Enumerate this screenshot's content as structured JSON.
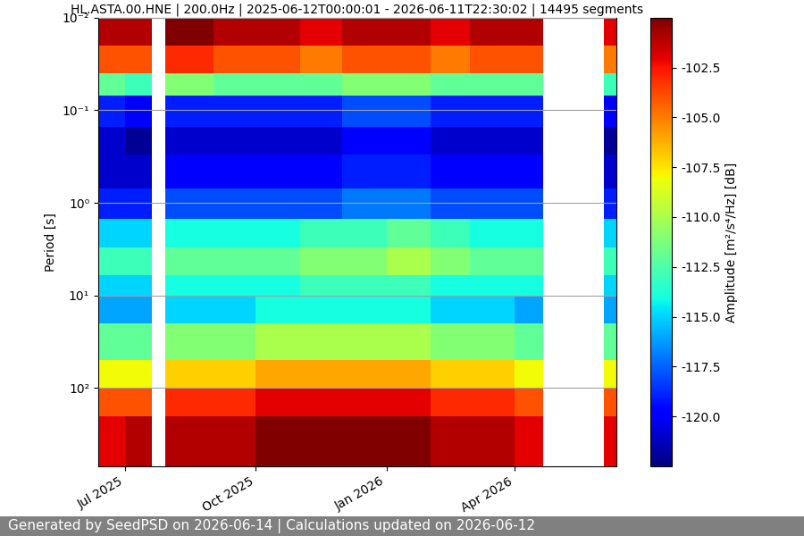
{
  "chart_data": {
    "type": "heatmap",
    "title": "HL.ASTA.00.HNE | 200.0Hz | 2025-06-12T00:00:01 - 2026-06-11T22:30:02 | 14495 segments",
    "ylabel": "Period [s]",
    "footer": "Generated by SeedPSD on 2026-06-14 | Calculations updated on 2026-06-12",
    "log": "y",
    "grid": true,
    "time_edges": [
      "2025-06-12",
      "2025-07-01",
      "2025-07-20",
      "2025-07-29",
      "2025-09-01",
      "2025-10-01",
      "2025-11-01",
      "2025-12-01",
      "2026-01-01",
      "2026-02-01",
      "2026-03-01",
      "2026-04-01",
      "2026-04-21",
      "2026-06-03",
      "2026-06-12"
    ],
    "period_edges": [
      0.01,
      0.02,
      0.04,
      0.07,
      0.15,
      0.3,
      0.7,
      1.5,
      3,
      6,
      10,
      20,
      50,
      100,
      200,
      700
    ],
    "cells": [
      [
        -101,
        -101,
        null,
        -100,
        -101,
        -101,
        -102,
        -101,
        -101,
        -102,
        -101,
        -101,
        null,
        -102
      ],
      [
        -104,
        -104,
        null,
        -103,
        -104,
        -104,
        -105,
        -104,
        -104,
        -105,
        -104,
        -104,
        null,
        -105
      ],
      [
        -112,
        -113,
        null,
        -111,
        -112,
        -112,
        -112,
        -111,
        -111,
        -112,
        -112,
        -112,
        null,
        -113
      ],
      [
        -119,
        -120,
        null,
        -119,
        -119,
        -119,
        -119,
        -118,
        -118,
        -119,
        -119,
        -119,
        null,
        -120
      ],
      [
        -121,
        -122,
        null,
        -121,
        -121,
        -121,
        -121,
        -120,
        -120,
        -121,
        -121,
        -121,
        null,
        -122
      ],
      [
        -121,
        -121,
        null,
        -120,
        -120,
        -120,
        -120,
        -119,
        -119,
        -120,
        -120,
        -120,
        null,
        -121
      ],
      [
        -119,
        -119,
        null,
        -118,
        -118,
        -118,
        -118,
        -117,
        -117,
        -118,
        -118,
        -118,
        null,
        -119
      ],
      [
        -115,
        -115,
        null,
        -114,
        -114,
        -114,
        -113,
        -113,
        -112,
        -113,
        -114,
        -114,
        null,
        -115
      ],
      [
        -113,
        -113,
        null,
        -112,
        -112,
        -112,
        -111,
        -111,
        -110,
        -111,
        -112,
        -112,
        null,
        -113
      ],
      [
        -115,
        -115,
        null,
        -114,
        -114,
        -114,
        -113,
        -113,
        -113,
        -114,
        -114,
        -114,
        null,
        -115
      ],
      [
        -116,
        -116,
        null,
        -115,
        -115,
        -114,
        -114,
        -114,
        -114,
        -115,
        -115,
        -116,
        null,
        -116
      ],
      [
        -112,
        -112,
        null,
        -111,
        -111,
        -110,
        -110,
        -110,
        -110,
        -111,
        -111,
        -112,
        null,
        -112
      ],
      [
        -108,
        -108,
        null,
        -107,
        -107,
        -106,
        -106,
        -106,
        -106,
        -107,
        -107,
        -108,
        null,
        -108
      ],
      [
        -104,
        -104,
        null,
        -103,
        -103,
        -102,
        -102,
        -102,
        -102,
        -103,
        -103,
        -104,
        null,
        -104
      ],
      [
        -102,
        -101,
        null,
        -101,
        -101,
        -100,
        -100,
        -100,
        -100,
        -101,
        -101,
        -102,
        null,
        -102
      ]
    ],
    "xlim": [
      "2025-06-12",
      "2026-06-12"
    ],
    "xticks": [
      {
        "value": "2025-07-01",
        "label": "Jul 2025"
      },
      {
        "value": "2025-10-01",
        "label": "Oct 2025"
      },
      {
        "value": "2026-01-01",
        "label": "Jan 2026"
      },
      {
        "value": "2026-04-01",
        "label": "Apr 2026"
      }
    ],
    "ylim": [
      700,
      0.01
    ],
    "yticks": [
      {
        "value": 0.01,
        "label": "10⁻²"
      },
      {
        "value": 0.1,
        "label": "10⁻¹"
      },
      {
        "value": 1,
        "label": "10⁰"
      },
      {
        "value": 10,
        "label": "10¹"
      },
      {
        "value": 100,
        "label": "10²"
      }
    ],
    "colorbar_label": "Amplitude [m²/s⁴/Hz] [dB]",
    "colorbar_range": [
      -122.5,
      -100
    ],
    "colorbar_ticks": [
      -102.5,
      -105.0,
      -107.5,
      -110.0,
      -112.5,
      -115.0,
      -117.5,
      -120.0
    ]
  }
}
